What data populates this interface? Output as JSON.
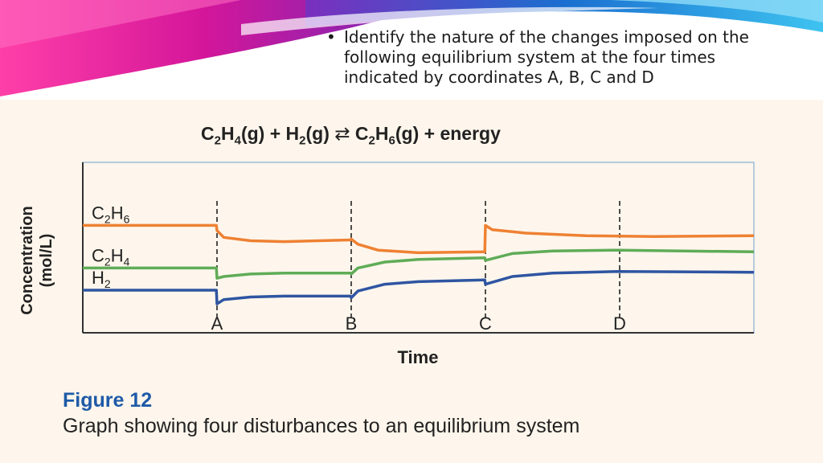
{
  "slide": {
    "bullet_text": "Identify the nature of the changes imposed on the following equilibrium system at the four times indicated by coordinates A, B, C and D",
    "bullet_lines": [
      "Identify the nature of the changes imposed on the",
      "following equilibrium system at the four times",
      "indicated by coordinates A, B, C and D"
    ],
    "accent_colors": [
      "#e0218a",
      "#7b2fbe",
      "#1a9fd9",
      "#7fd3f5"
    ]
  },
  "figure": {
    "equation": {
      "reactant1_main": "C",
      "reactant1_sub1": "2",
      "reactant1_h": "H",
      "reactant1_sub2": "4",
      "reactant1_state": "(g) + ",
      "reactant2_main": "H",
      "reactant2_sub": "2",
      "reactant2_state": "(g) ",
      "arrow": "⇄",
      "product_main": " C",
      "product_sub1": "2",
      "product_h": "H",
      "product_sub2": "6",
      "product_state": "(g) + energy"
    },
    "label": "Figure 12",
    "caption": "Graph showing four disturbances to an equilibrium system"
  },
  "chart_data": {
    "type": "line",
    "title": "",
    "xlabel": "Time",
    "ylabel_lines": [
      "Concentration",
      "(mol/L)"
    ],
    "xlim": [
      0,
      10
    ],
    "ylim": [
      0,
      10
    ],
    "grid": false,
    "background": "#fef6ec",
    "events": [
      {
        "label": "A",
        "x": 2.0
      },
      {
        "label": "B",
        "x": 4.0
      },
      {
        "label": "C",
        "x": 6.0
      },
      {
        "label": "D",
        "x": 8.0
      }
    ],
    "series": [
      {
        "name": "C2H6",
        "label_main": "C",
        "label_sub1": "2",
        "label_h": "H",
        "label_sub2": "6",
        "color": "#ee8133",
        "points": [
          [
            0,
            6.3
          ],
          [
            1.99,
            6.3
          ],
          [
            2.0,
            6.0
          ],
          [
            2.1,
            5.6
          ],
          [
            2.5,
            5.4
          ],
          [
            3.0,
            5.35
          ],
          [
            3.99,
            5.45
          ],
          [
            4.0,
            5.5
          ],
          [
            4.1,
            5.2
          ],
          [
            4.4,
            4.85
          ],
          [
            5.0,
            4.7
          ],
          [
            5.99,
            4.75
          ],
          [
            6.0,
            6.3
          ],
          [
            6.1,
            6.05
          ],
          [
            6.6,
            5.85
          ],
          [
            7.5,
            5.7
          ],
          [
            8.5,
            5.65
          ],
          [
            10,
            5.7
          ]
        ]
      },
      {
        "name": "C2H4",
        "label_main": "C",
        "label_sub1": "2",
        "label_h": "H",
        "label_sub2": "4",
        "color": "#5fac57",
        "points": [
          [
            0,
            3.8
          ],
          [
            1.99,
            3.8
          ],
          [
            2.0,
            3.2
          ],
          [
            2.1,
            3.3
          ],
          [
            2.5,
            3.45
          ],
          [
            3.0,
            3.5
          ],
          [
            3.99,
            3.5
          ],
          [
            4.0,
            3.45
          ],
          [
            4.1,
            3.8
          ],
          [
            4.5,
            4.15
          ],
          [
            5.0,
            4.3
          ],
          [
            5.99,
            4.4
          ],
          [
            6.0,
            4.25
          ],
          [
            6.4,
            4.65
          ],
          [
            7.0,
            4.8
          ],
          [
            8.0,
            4.85
          ],
          [
            10,
            4.75
          ]
        ]
      },
      {
        "name": "H2",
        "label_main": "H",
        "label_sub1": "2",
        "label_h": "",
        "label_sub2": "",
        "color": "#2f55a2",
        "points": [
          [
            0,
            2.5
          ],
          [
            1.99,
            2.5
          ],
          [
            2.0,
            1.7
          ],
          [
            2.1,
            1.95
          ],
          [
            2.5,
            2.1
          ],
          [
            3.0,
            2.15
          ],
          [
            3.99,
            2.15
          ],
          [
            4.0,
            2.05
          ],
          [
            4.1,
            2.45
          ],
          [
            4.5,
            2.85
          ],
          [
            5.0,
            3.0
          ],
          [
            5.99,
            3.1
          ],
          [
            6.0,
            2.85
          ],
          [
            6.4,
            3.3
          ],
          [
            7.0,
            3.5
          ],
          [
            8.0,
            3.6
          ],
          [
            10,
            3.55
          ]
        ]
      }
    ]
  }
}
